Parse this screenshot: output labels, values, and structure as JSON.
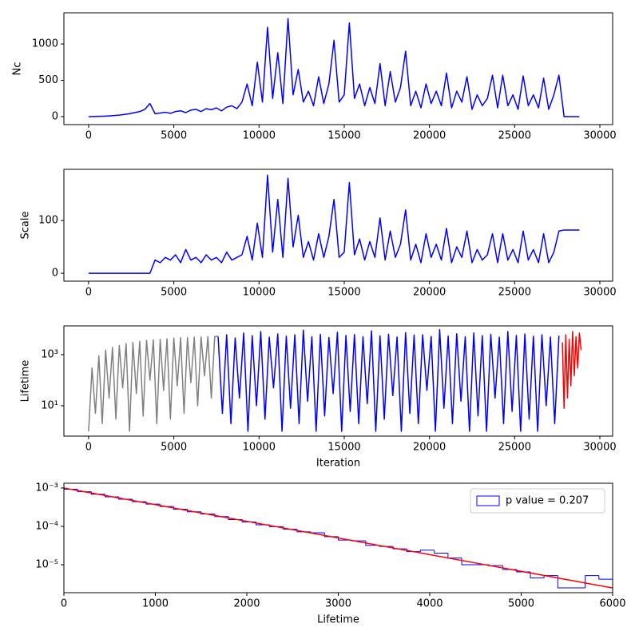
{
  "chart_data": [
    {
      "type": "line",
      "ylabel": "Nc",
      "xlim": [
        -1450,
        30750
      ],
      "xticks": [
        0,
        5000,
        10000,
        15000,
        20000,
        25000,
        30000
      ],
      "ylim": [
        -110,
        1430
      ],
      "yticks": [
        0,
        500,
        1000
      ],
      "x": [
        0,
        300,
        600,
        900,
        1200,
        1500,
        1800,
        2100,
        2400,
        2700,
        3000,
        3300,
        3600,
        3900,
        4200,
        4500,
        4800,
        5100,
        5400,
        5700,
        6000,
        6300,
        6600,
        6900,
        7200,
        7500,
        7800,
        8100,
        8400,
        8700,
        9000,
        9300,
        9600,
        9900,
        10200,
        10500,
        10800,
        11100,
        11400,
        11700,
        12000,
        12300,
        12600,
        12900,
        13200,
        13500,
        13800,
        14100,
        14400,
        14700,
        15000,
        15300,
        15600,
        15900,
        16200,
        16500,
        16800,
        17100,
        17400,
        17700,
        18000,
        18300,
        18600,
        18900,
        19200,
        19500,
        19800,
        20100,
        20400,
        20700,
        21000,
        21300,
        21600,
        21900,
        22200,
        22500,
        22800,
        23100,
        23400,
        23700,
        24000,
        24300,
        24600,
        24900,
        25200,
        25500,
        25800,
        26100,
        26400,
        26700,
        27000,
        27300,
        27600,
        27900,
        28200,
        28500,
        28800
      ],
      "series": [
        {
          "color": "#0000ff",
          "values": [
            0,
            2,
            4,
            6,
            10,
            15,
            20,
            30,
            40,
            55,
            70,
            100,
            180,
            40,
            50,
            60,
            45,
            70,
            80,
            55,
            90,
            100,
            70,
            110,
            95,
            120,
            80,
            130,
            150,
            110,
            200,
            450,
            150,
            750,
            200,
            1230,
            250,
            880,
            180,
            1350,
            300,
            650,
            200,
            350,
            150,
            550,
            180,
            450,
            1050,
            200,
            300,
            1290,
            250,
            450,
            150,
            400,
            180,
            730,
            150,
            620,
            200,
            400,
            900,
            150,
            350,
            120,
            450,
            180,
            350,
            150,
            600,
            120,
            350,
            200,
            550,
            100,
            300,
            150,
            250,
            570,
            120,
            570,
            150,
            300,
            100,
            560,
            150,
            300,
            120,
            530,
            100,
            300,
            570,
            0,
            0,
            0,
            0
          ]
        }
      ]
    },
    {
      "type": "line",
      "ylabel": "Scale",
      "xlim": [
        -1450,
        30750
      ],
      "xticks": [
        0,
        5000,
        10000,
        15000,
        20000,
        25000,
        30000
      ],
      "ylim": [
        -15,
        197
      ],
      "yticks": [
        0,
        100
      ],
      "x": [
        0,
        300,
        600,
        900,
        1200,
        1500,
        1800,
        2100,
        2400,
        2700,
        3000,
        3300,
        3600,
        3900,
        4200,
        4500,
        4800,
        5100,
        5400,
        5700,
        6000,
        6300,
        6600,
        6900,
        7200,
        7500,
        7800,
        8100,
        8400,
        8700,
        9000,
        9300,
        9600,
        9900,
        10200,
        10500,
        10800,
        11100,
        11400,
        11700,
        12000,
        12300,
        12600,
        12900,
        13200,
        13500,
        13800,
        14100,
        14400,
        14700,
        15000,
        15300,
        15600,
        15900,
        16200,
        16500,
        16800,
        17100,
        17400,
        17700,
        18000,
        18300,
        18600,
        18900,
        19200,
        19500,
        19800,
        20100,
        20400,
        20700,
        21000,
        21300,
        21600,
        21900,
        22200,
        22500,
        22800,
        23100,
        23400,
        23700,
        24000,
        24300,
        24600,
        24900,
        25200,
        25500,
        25800,
        26100,
        26400,
        26700,
        27000,
        27300,
        27600,
        27900,
        28200,
        28500,
        28800
      ],
      "series": [
        {
          "color": "#0000ff",
          "values": [
            0,
            0,
            0,
            0,
            0,
            0,
            0,
            0,
            0,
            0,
            0,
            0,
            0,
            25,
            20,
            30,
            25,
            35,
            20,
            45,
            25,
            30,
            20,
            35,
            25,
            30,
            20,
            40,
            25,
            30,
            35,
            70,
            25,
            95,
            30,
            186,
            40,
            140,
            30,
            180,
            50,
            110,
            30,
            60,
            25,
            75,
            30,
            70,
            140,
            30,
            40,
            172,
            35,
            65,
            25,
            60,
            30,
            105,
            25,
            80,
            30,
            55,
            120,
            25,
            55,
            20,
            75,
            30,
            55,
            25,
            85,
            20,
            50,
            30,
            80,
            20,
            45,
            25,
            35,
            75,
            20,
            75,
            25,
            45,
            20,
            80,
            25,
            45,
            20,
            75,
            20,
            40,
            80,
            82,
            82,
            82,
            82
          ]
        }
      ]
    },
    {
      "type": "line",
      "ylabel": "Lifetime",
      "xlabel": "Iteration",
      "log": true,
      "xlim": [
        -1450,
        30750
      ],
      "xticks": [
        0,
        5000,
        10000,
        15000,
        20000,
        25000,
        30000
      ],
      "ylim": [
        0.65,
        13300
      ],
      "yticks": [
        {
          "value": 10,
          "label": "10¹"
        },
        {
          "value": 1000,
          "label": "10³"
        }
      ],
      "series": [
        {
          "color": "#808080",
          "x": [
            0,
            200,
            400,
            600,
            800,
            1000,
            1200,
            1400,
            1600,
            1800,
            2000,
            2200,
            2400,
            2600,
            2800,
            3000,
            3200,
            3400,
            3600,
            3800,
            4000,
            4200,
            4400,
            4600,
            4800,
            5000,
            5200,
            5400,
            5600,
            5800,
            6000,
            6200,
            6400,
            6600,
            6800,
            7000,
            7200,
            7400,
            7600
          ],
          "values": [
            1,
            300,
            5,
            900,
            2,
            1500,
            20,
            1900,
            3,
            2300,
            50,
            2700,
            1,
            3000,
            30,
            3300,
            4,
            3600,
            100,
            3800,
            2,
            4000,
            40,
            4200,
            3,
            4400,
            60,
            4600,
            5,
            4700,
            80,
            4800,
            10,
            4900,
            150,
            5000,
            20,
            5100,
            5200
          ]
        },
        {
          "color": "#0000ff",
          "x": [
            7600,
            7850,
            8100,
            8350,
            8600,
            8850,
            9100,
            9350,
            9600,
            9850,
            10100,
            10350,
            10600,
            10850,
            11100,
            11350,
            11600,
            11850,
            12100,
            12350,
            12600,
            12850,
            13100,
            13350,
            13600,
            13850,
            14100,
            14350,
            14600,
            14850,
            15100,
            15350,
            15600,
            15850,
            16100,
            16350,
            16600,
            16850,
            17100,
            17350,
            17600,
            17850,
            18100,
            18350,
            18600,
            18850,
            19100,
            19350,
            19600,
            19850,
            20100,
            20350,
            20600,
            20850,
            21100,
            21350,
            21600,
            21850,
            22100,
            22350,
            22600,
            22850,
            23100,
            23350,
            23600,
            23850,
            24100,
            24350,
            24600,
            24850,
            25100,
            25350,
            25600,
            25850,
            26100,
            26350,
            26600,
            26850,
            27100,
            27350,
            27600
          ],
          "values": [
            5000,
            5,
            6000,
            2,
            4500,
            20,
            7000,
            1,
            5500,
            10,
            8000,
            3,
            4800,
            50,
            6500,
            1,
            5200,
            8,
            6000,
            2,
            9000,
            15,
            5000,
            1,
            6200,
            4,
            4700,
            30,
            7500,
            1,
            5600,
            6,
            6100,
            2,
            5000,
            12,
            8500,
            1,
            5400,
            3,
            6300,
            25,
            4900,
            1,
            7200,
            5,
            5800,
            2,
            6000,
            40,
            5100,
            1,
            9500,
            8,
            5300,
            2,
            6600,
            15,
            5000,
            1,
            7000,
            4,
            5500,
            1,
            6200,
            20,
            4800,
            2,
            8000,
            6,
            5600,
            1,
            6400,
            3,
            5200,
            1,
            6000,
            10,
            4900,
            2,
            5500
          ]
        },
        {
          "color": "#ff0000",
          "x": [
            27800,
            27900,
            28000,
            28100,
            28200,
            28300,
            28400,
            28500,
            28600,
            28700,
            28800,
            28900
          ],
          "values": [
            3000,
            8,
            6000,
            20,
            4000,
            60,
            8000,
            150,
            5000,
            300,
            7000,
            1500
          ]
        }
      ]
    },
    {
      "type": "histogram",
      "xlabel": "Lifetime",
      "log": true,
      "legend": "upper right",
      "xlim": [
        0,
        6000
      ],
      "xticks": [
        0,
        1000,
        2000,
        3000,
        4000,
        5000,
        6000
      ],
      "ylim": [
        1.87e-06,
        0.00133
      ],
      "yticks": [
        {
          "value": 0.001,
          "label": "10⁻³"
        },
        {
          "value": 0.0001,
          "label": "10⁻⁴"
        },
        {
          "value": 1e-05,
          "label": "10⁻⁵"
        }
      ],
      "bins": [
        0,
        150,
        300,
        450,
        600,
        750,
        900,
        1050,
        1200,
        1350,
        1500,
        1650,
        1800,
        1950,
        2100,
        2250,
        2400,
        2550,
        2700,
        2850,
        3000,
        3150,
        3300,
        3450,
        3600,
        3750,
        3900,
        4050,
        4200,
        4350,
        4500,
        4650,
        4800,
        4950,
        5100,
        5250,
        5400,
        5550,
        5700,
        5850,
        6000
      ],
      "series": [
        {
          "name": "p value = 0.207",
          "color": "#0000ff",
          "values": [
            0.00093,
            0.0008,
            0.00069,
            0.00059,
            0.00051,
            0.00044,
            0.00038,
            0.00033,
            0.00028,
            0.00024,
            0.00021,
            0.00018,
            0.00015,
            0.00013,
            0.00011,
            9.8e-05,
            8.4e-05,
            7.2e-05,
            6.8e-05,
            5.4e-05,
            4.4e-05,
            4.2e-05,
            3.2e-05,
            3e-05,
            2.6e-05,
            2.2e-05,
            2.4e-05,
            2e-05,
            1.5e-05,
            1e-05,
            1e-05,
            9.5e-06,
            7.5e-06,
            6.5e-06,
            4.5e-06,
            5.2e-06,
            2.5e-06,
            2.5e-06,
            5.2e-06,
            4.2e-06
          ]
        }
      ],
      "lines": [
        {
          "color": "#ff0000",
          "x": [
            0,
            6000
          ],
          "values": [
            0.001,
            2.48e-06
          ]
        }
      ]
    }
  ]
}
